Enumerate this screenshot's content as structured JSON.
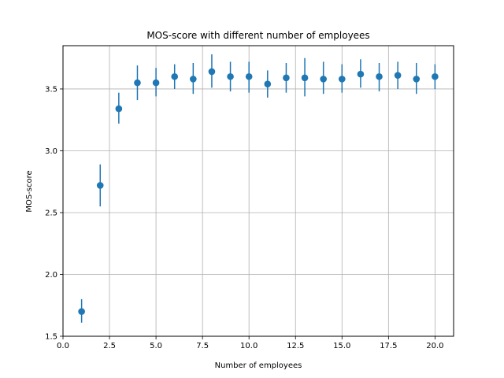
{
  "chart_data": {
    "type": "scatter",
    "title": "MOS-score with different number of employees",
    "xlabel": "Number of employees",
    "ylabel": "MOS-score",
    "xlim": [
      0.0,
      21.0
    ],
    "ylim": [
      1.5,
      3.85
    ],
    "x_ticks": [
      0.0,
      2.5,
      5.0,
      7.5,
      10.0,
      12.5,
      15.0,
      17.5,
      20.0
    ],
    "x_tick_labels": [
      "0.0",
      "2.5",
      "5.0",
      "7.5",
      "10.0",
      "12.5",
      "15.0",
      "17.5",
      "20.0"
    ],
    "y_ticks": [
      1.5,
      2.0,
      2.5,
      3.0,
      3.5
    ],
    "y_tick_labels": [
      "1.5",
      "2.0",
      "2.5",
      "3.0",
      "3.5"
    ],
    "grid": true,
    "series": [
      {
        "color": "#1f77b4",
        "error_bars": true,
        "points": [
          {
            "x": 1,
            "y": 1.7,
            "low": 1.61,
            "high": 1.8
          },
          {
            "x": 2,
            "y": 2.72,
            "low": 2.55,
            "high": 2.89
          },
          {
            "x": 3,
            "y": 3.34,
            "low": 3.22,
            "high": 3.47
          },
          {
            "x": 4,
            "y": 3.55,
            "low": 3.41,
            "high": 3.69
          },
          {
            "x": 5,
            "y": 3.55,
            "low": 3.44,
            "high": 3.67
          },
          {
            "x": 6,
            "y": 3.6,
            "low": 3.5,
            "high": 3.7
          },
          {
            "x": 7,
            "y": 3.58,
            "low": 3.46,
            "high": 3.71
          },
          {
            "x": 8,
            "y": 3.64,
            "low": 3.51,
            "high": 3.78
          },
          {
            "x": 9,
            "y": 3.6,
            "low": 3.48,
            "high": 3.72
          },
          {
            "x": 10,
            "y": 3.6,
            "low": 3.47,
            "high": 3.72
          },
          {
            "x": 11,
            "y": 3.54,
            "low": 3.43,
            "high": 3.65
          },
          {
            "x": 12,
            "y": 3.59,
            "low": 3.47,
            "high": 3.71
          },
          {
            "x": 13,
            "y": 3.59,
            "low": 3.44,
            "high": 3.75
          },
          {
            "x": 14,
            "y": 3.58,
            "low": 3.46,
            "high": 3.72
          },
          {
            "x": 15,
            "y": 3.58,
            "low": 3.47,
            "high": 3.7
          },
          {
            "x": 16,
            "y": 3.62,
            "low": 3.51,
            "high": 3.74
          },
          {
            "x": 17,
            "y": 3.6,
            "low": 3.48,
            "high": 3.71
          },
          {
            "x": 18,
            "y": 3.61,
            "low": 3.5,
            "high": 3.72
          },
          {
            "x": 19,
            "y": 3.58,
            "low": 3.46,
            "high": 3.71
          },
          {
            "x": 20,
            "y": 3.6,
            "low": 3.5,
            "high": 3.7
          }
        ]
      }
    ]
  }
}
